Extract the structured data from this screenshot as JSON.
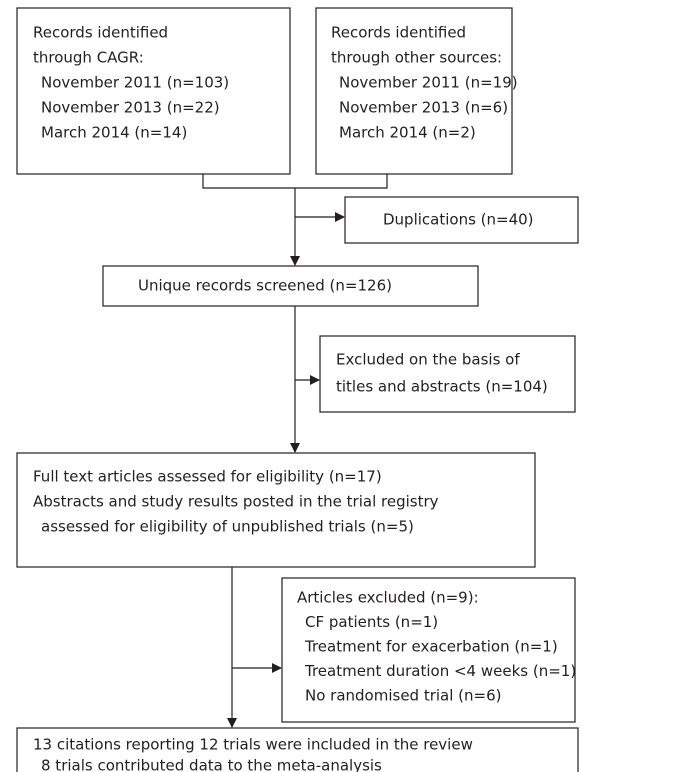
{
  "nodes": [
    {
      "lines": [
        "Records identified",
        "through CAGR:",
        "November 2011 (n=103)",
        "November 2013 (n=22)",
        "March 2014 (n=14)"
      ]
    },
    {
      "lines": [
        "Records identified",
        "through other sources:",
        "November 2011 (n=19)",
        "November 2013 (n=6)",
        "March 2014 (n=2)"
      ]
    },
    {
      "lines": [
        "Duplications (n=40)"
      ]
    },
    {
      "lines": [
        "Unique records screened (n=126)"
      ]
    },
    {
      "lines": [
        "Excluded on the basis of",
        "titles and abstracts (n=104)"
      ]
    },
    {
      "lines": [
        "Full text articles assessed for eligibility (n=17)",
        "Abstracts and study results posted in the trial registry",
        "assessed for eligibility of unpublished trials (n=5)"
      ]
    },
    {
      "lines": [
        "Articles excluded (n=9):",
        "CF patients (n=1)",
        "Treatment for exacerbation (n=1)",
        "Treatment duration <4 weeks (n=1)",
        "No randomised trial (n=6)"
      ]
    },
    {
      "lines": [
        "13 citations reporting 12 trials were included in the review",
        "8 trials contributed data to the meta-analysis"
      ]
    }
  ]
}
